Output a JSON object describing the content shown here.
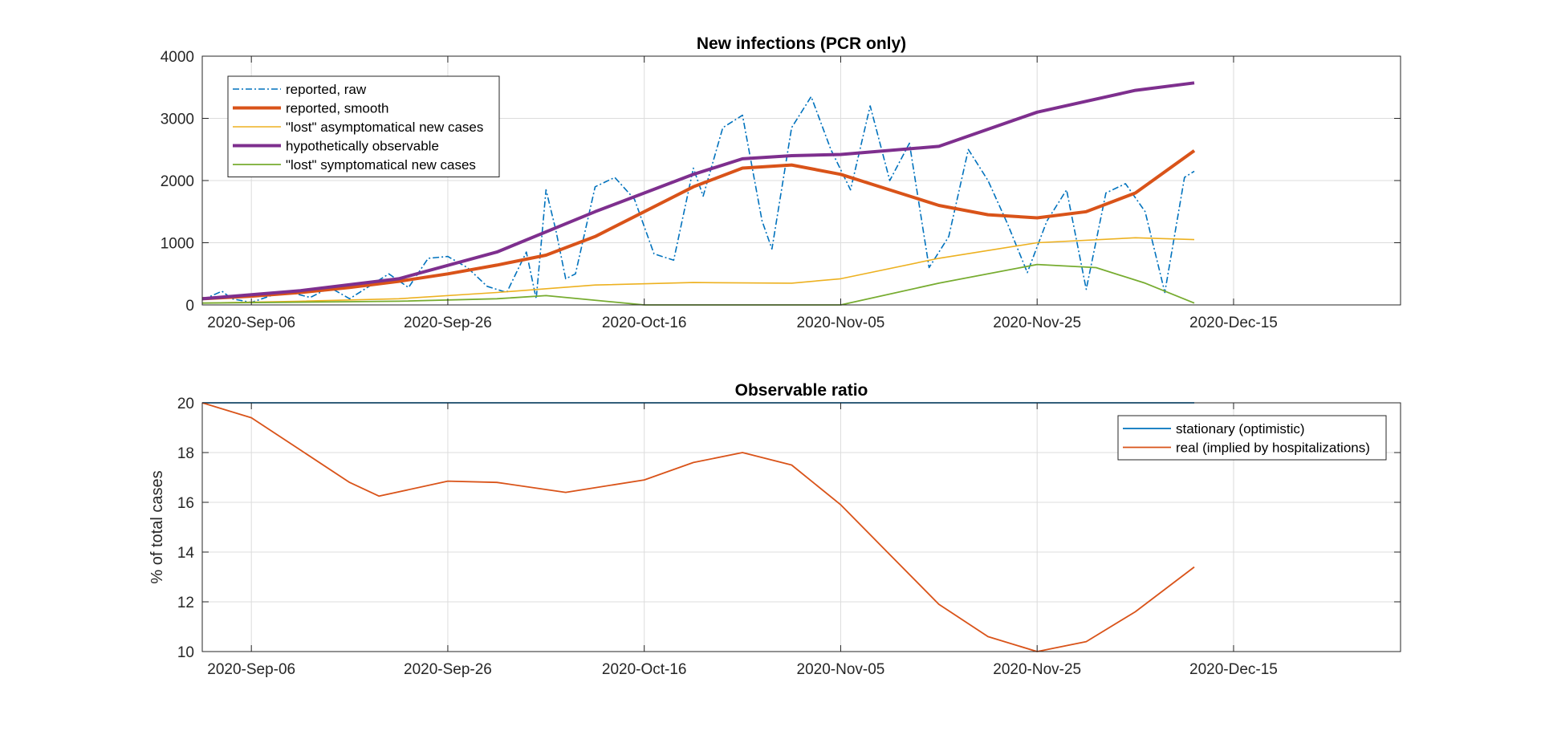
{
  "chart_data": [
    {
      "type": "line",
      "title": "New infections (PCR only)",
      "ylabel": "",
      "xlabel": "",
      "ylim": [
        0,
        4000
      ],
      "yticks": [
        0,
        1000,
        2000,
        3000,
        4000
      ],
      "xlim": [
        "2020-09-01",
        "2021-01-01"
      ],
      "xticks": [
        "2020-09-06",
        "2020-09-26",
        "2020-10-16",
        "2020-11-05",
        "2020-11-25",
        "2020-12-15"
      ],
      "xtick_labels": [
        "2020-Sep-06",
        "2020-Sep-26",
        "2020-Oct-16",
        "2020-Nov-05",
        "2020-Nov-25",
        "2020-Dec-15"
      ],
      "grid": true,
      "legend_position": "top-left",
      "series": [
        {
          "name": "reported, raw",
          "color": "#0072BD",
          "style": "dashdot",
          "x": [
            "2020-09-01",
            "2020-09-03",
            "2020-09-04",
            "2020-09-06",
            "2020-09-08",
            "2020-09-10",
            "2020-09-12",
            "2020-09-14",
            "2020-09-16",
            "2020-09-18",
            "2020-09-20",
            "2020-09-22",
            "2020-09-24",
            "2020-09-26",
            "2020-09-28",
            "2020-09-30",
            "2020-10-02",
            "2020-10-04",
            "2020-10-05",
            "2020-10-06",
            "2020-10-07",
            "2020-10-08",
            "2020-10-09",
            "2020-10-11",
            "2020-10-13",
            "2020-10-15",
            "2020-10-17",
            "2020-10-19",
            "2020-10-21",
            "2020-10-22",
            "2020-10-24",
            "2020-10-26",
            "2020-10-28",
            "2020-10-29",
            "2020-10-31",
            "2020-11-02",
            "2020-11-04",
            "2020-11-06",
            "2020-11-08",
            "2020-11-10",
            "2020-11-12",
            "2020-11-14",
            "2020-11-16",
            "2020-11-18",
            "2020-11-20",
            "2020-11-22",
            "2020-11-24",
            "2020-11-26",
            "2020-11-28",
            "2020-11-30",
            "2020-12-02",
            "2020-12-04",
            "2020-12-06",
            "2020-12-08",
            "2020-12-10",
            "2020-12-11"
          ],
          "values": [
            80,
            220,
            100,
            40,
            150,
            200,
            120,
            280,
            100,
            300,
            500,
            280,
            750,
            780,
            600,
            300,
            200,
            850,
            100,
            1850,
            1200,
            420,
            500,
            1900,
            2050,
            1700,
            820,
            720,
            2200,
            1750,
            2850,
            3050,
            1350,
            900,
            2850,
            3350,
            2500,
            1850,
            3200,
            2000,
            2600,
            600,
            1100,
            2500,
            2000,
            1300,
            520,
            1350,
            1850,
            250,
            1800,
            1950,
            1500,
            200,
            2050,
            2150
          ]
        },
        {
          "name": "reported, smooth",
          "color": "#D95319",
          "x": [
            "2020-09-01",
            "2020-09-06",
            "2020-09-11",
            "2020-09-16",
            "2020-09-21",
            "2020-09-26",
            "2020-10-01",
            "2020-10-06",
            "2020-10-11",
            "2020-10-16",
            "2020-10-21",
            "2020-10-26",
            "2020-10-31",
            "2020-11-05",
            "2020-11-10",
            "2020-11-15",
            "2020-11-20",
            "2020-11-25",
            "2020-11-30",
            "2020-12-05",
            "2020-12-11"
          ],
          "values": [
            100,
            140,
            200,
            280,
            380,
            500,
            640,
            800,
            1100,
            1500,
            1900,
            2200,
            2250,
            2100,
            1850,
            1600,
            1450,
            1400,
            1500,
            1800,
            2480
          ]
        },
        {
          "name": "\"lost\" asymptomatical new cases",
          "color": "#EDB120",
          "x": [
            "2020-09-01",
            "2020-09-11",
            "2020-09-21",
            "2020-10-01",
            "2020-10-11",
            "2020-10-21",
            "2020-10-31",
            "2020-11-05",
            "2020-11-15",
            "2020-11-25",
            "2020-12-05",
            "2020-12-11"
          ],
          "values": [
            30,
            60,
            100,
            200,
            320,
            360,
            350,
            420,
            750,
            1000,
            1080,
            1050
          ]
        },
        {
          "name": "hypothetically observable",
          "color": "#7E2F8E",
          "x": [
            "2020-09-01",
            "2020-09-11",
            "2020-09-21",
            "2020-10-01",
            "2020-10-11",
            "2020-10-21",
            "2020-10-26",
            "2020-10-31",
            "2020-11-05",
            "2020-11-15",
            "2020-11-25",
            "2020-12-05",
            "2020-12-11"
          ],
          "values": [
            100,
            230,
            420,
            850,
            1500,
            2100,
            2350,
            2400,
            2420,
            2550,
            3100,
            3450,
            3570
          ]
        },
        {
          "name": "\"lost\" symptomatical new cases",
          "color": "#77AC30",
          "x": [
            "2020-09-01",
            "2020-09-21",
            "2020-10-01",
            "2020-10-06",
            "2020-10-16",
            "2020-10-20",
            "2020-11-05",
            "2020-11-15",
            "2020-11-25",
            "2020-12-01",
            "2020-12-06",
            "2020-12-11"
          ],
          "values": [
            30,
            60,
            100,
            150,
            0,
            0,
            0,
            350,
            650,
            600,
            350,
            30
          ]
        }
      ]
    },
    {
      "type": "line",
      "title": "Observable ratio",
      "ylabel": "% of total cases",
      "xlabel": "",
      "ylim": [
        10,
        20
      ],
      "yticks": [
        10,
        12,
        14,
        16,
        18,
        20
      ],
      "xlim": [
        "2020-09-01",
        "2021-01-01"
      ],
      "xticks": [
        "2020-09-06",
        "2020-09-26",
        "2020-10-16",
        "2020-11-05",
        "2020-11-25",
        "2020-12-15"
      ],
      "xtick_labels": [
        "2020-Sep-06",
        "2020-Sep-26",
        "2020-Oct-16",
        "2020-Nov-05",
        "2020-Nov-25",
        "2020-Dec-15"
      ],
      "grid": true,
      "legend_position": "top-right",
      "series": [
        {
          "name": "stationary (optimistic)",
          "color": "#0072BD",
          "x": [
            "2020-09-01",
            "2020-12-11"
          ],
          "values": [
            20,
            20
          ]
        },
        {
          "name": "real (implied by hospitalizations)",
          "color": "#D95319",
          "x": [
            "2020-09-01",
            "2020-09-06",
            "2020-09-11",
            "2020-09-16",
            "2020-09-19",
            "2020-09-26",
            "2020-10-01",
            "2020-10-08",
            "2020-10-16",
            "2020-10-21",
            "2020-10-26",
            "2020-10-31",
            "2020-11-05",
            "2020-11-10",
            "2020-11-15",
            "2020-11-20",
            "2020-11-25",
            "2020-11-30",
            "2020-12-05",
            "2020-12-11"
          ],
          "values": [
            20,
            19.4,
            18.1,
            16.8,
            16.25,
            16.85,
            16.8,
            16.4,
            16.9,
            17.6,
            18.0,
            17.5,
            15.9,
            13.9,
            11.9,
            10.6,
            10.0,
            10.4,
            11.6,
            13.4
          ]
        }
      ]
    }
  ]
}
